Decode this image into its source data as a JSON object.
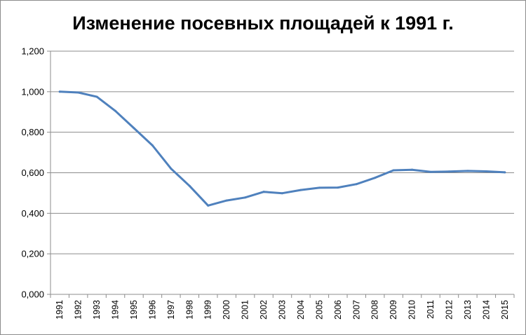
{
  "chart_data": {
    "type": "line",
    "title": "Изменение посевных площадей к 1991 г.",
    "xlabel": "",
    "ylabel": "",
    "ylim": [
      0,
      1.2
    ],
    "yticks": [
      "0,000",
      "0,200",
      "0,400",
      "0,600",
      "0,800",
      "1,000",
      "1,200"
    ],
    "ytick_values": [
      0,
      0.2,
      0.4,
      0.6,
      0.8,
      1.0,
      1.2
    ],
    "grid": true,
    "legend": "none",
    "colors": {
      "line": "#4f81bd",
      "grid": "#8c8c8c",
      "axis": "#8c8c8c"
    },
    "x": [
      "1991",
      "1992",
      "1993",
      "1994",
      "1995",
      "1996",
      "1997",
      "1998",
      "1999",
      "2000",
      "2001",
      "2002",
      "2003",
      "2004",
      "2005",
      "2006",
      "2007",
      "2008",
      "2009",
      "2010",
      "2011",
      "2012",
      "2013",
      "2014",
      "2015"
    ],
    "series": [
      {
        "values": [
          1.0,
          0.996,
          0.975,
          0.905,
          0.82,
          0.735,
          0.62,
          0.535,
          0.438,
          0.463,
          0.478,
          0.506,
          0.499,
          0.515,
          0.526,
          0.527,
          0.544,
          0.575,
          0.612,
          0.615,
          0.604,
          0.606,
          0.609,
          0.607,
          0.602
        ]
      }
    ]
  }
}
